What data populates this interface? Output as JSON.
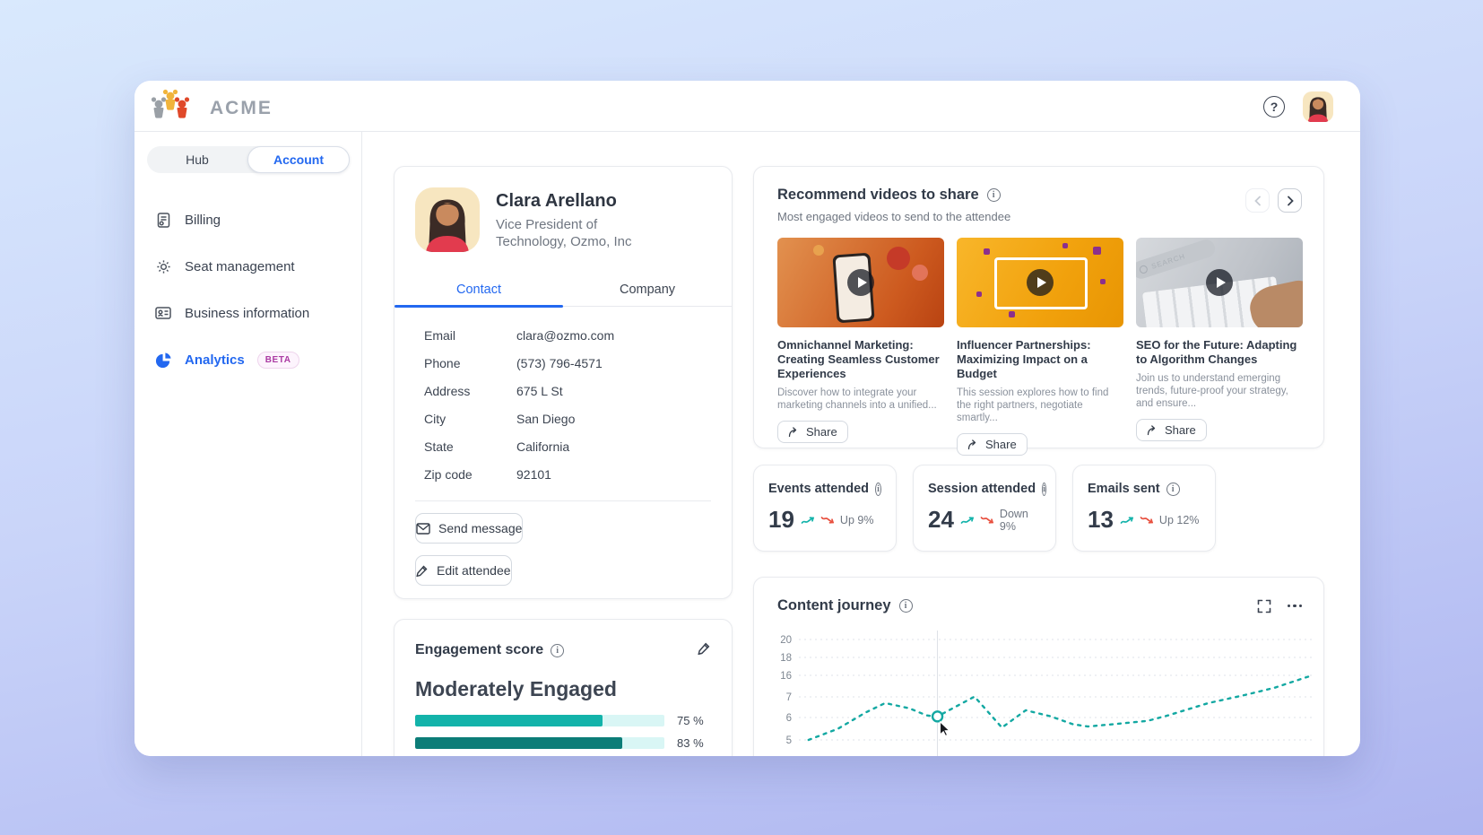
{
  "header": {
    "brand": "ACME"
  },
  "sidebar": {
    "tabs": [
      {
        "label": "Hub"
      },
      {
        "label": "Account"
      }
    ],
    "items": [
      {
        "label": "Billing"
      },
      {
        "label": "Seat management"
      },
      {
        "label": "Business information"
      },
      {
        "label": "Analytics",
        "badge": "BETA"
      }
    ]
  },
  "profile": {
    "name": "Clara Arellano",
    "title": "Vice President of Technology, Ozmo, Inc",
    "tabs": [
      {
        "label": "Contact"
      },
      {
        "label": "Company"
      }
    ],
    "fields": [
      {
        "label": "Email",
        "value": "clara@ozmo.com"
      },
      {
        "label": "Phone",
        "value": "(573) 796-4571"
      },
      {
        "label": "Address",
        "value": "675 L St"
      },
      {
        "label": "City",
        "value": "San Diego"
      },
      {
        "label": "State",
        "value": "California"
      },
      {
        "label": "Zip code",
        "value": "92101"
      }
    ],
    "buttons": [
      {
        "label": "Send message"
      },
      {
        "label": "Edit attendee"
      }
    ]
  },
  "engagement": {
    "title": "Engagement score",
    "level": "Moderately Engaged",
    "bars": [
      {
        "value": 75,
        "label": "75 %",
        "color": "#13b3aa"
      },
      {
        "value": 83,
        "label": "83 %",
        "color": "#0c7d78"
      }
    ]
  },
  "videos": {
    "title": "Recommend videos to share",
    "subtitle": "Most engaged videos to send to the attendee",
    "cards": [
      {
        "title": "Omnichannel Marketing: Creating Seamless Customer Experiences",
        "description": "Discover how to integrate your marketing channels into a unified...",
        "share_label": "Share",
        "thumb": "orange-phone-ornaments"
      },
      {
        "title": "Influencer Partnerships: Maximizing Impact on a Budget",
        "description": "This session explores how to find the right partners, negotiate smartly...",
        "share_label": "Share",
        "thumb": "yellow-influencer-confetti"
      },
      {
        "title": "SEO for the Future: Adapting to Algorithm Changes",
        "description": "Join us to understand emerging trends, future-proof your strategy, and ensure...",
        "share_label": "Share",
        "thumb": "gray-keyboard-hand",
        "thumb_search_text": "SEARCH"
      }
    ]
  },
  "stats": [
    {
      "label": "Events attended",
      "value": "19",
      "trend": "Up 9%",
      "direction": "up"
    },
    {
      "label": "Session attended",
      "value": "24",
      "trend": "Down 9%",
      "direction": "down"
    },
    {
      "label": "Emails sent",
      "value": "13",
      "trend": "Up 12%",
      "direction": "up"
    }
  ],
  "chart_data": {
    "type": "line",
    "title": "Content journey",
    "style": "dashed",
    "color": "#13a8a2",
    "grid": true,
    "y_ticks": [
      20,
      18,
      16,
      7,
      6,
      5
    ],
    "hover_index": 6,
    "points": [
      {
        "x": 0.012,
        "v": 5.0
      },
      {
        "x": 0.07,
        "v": 5.5
      },
      {
        "x": 0.125,
        "v": 6.25
      },
      {
        "x": 0.163,
        "v": 6.7
      },
      {
        "x": 0.21,
        "v": 6.45
      },
      {
        "x": 0.245,
        "v": 6.1
      },
      {
        "x": 0.266,
        "v": 6.05
      },
      {
        "x": 0.3,
        "v": 6.5
      },
      {
        "x": 0.339,
        "v": 7.1
      },
      {
        "x": 0.393,
        "v": 5.55
      },
      {
        "x": 0.44,
        "v": 6.35
      },
      {
        "x": 0.49,
        "v": 6.05
      },
      {
        "x": 0.533,
        "v": 5.7
      },
      {
        "x": 0.562,
        "v": 5.6
      },
      {
        "x": 0.612,
        "v": 5.7
      },
      {
        "x": 0.68,
        "v": 5.85
      },
      {
        "x": 0.72,
        "v": 6.1
      },
      {
        "x": 0.8,
        "v": 6.7
      },
      {
        "x": 0.87,
        "v": 7.7
      },
      {
        "x": 0.93,
        "v": 10.8
      },
      {
        "x": 1.0,
        "v": 15.7
      }
    ]
  }
}
